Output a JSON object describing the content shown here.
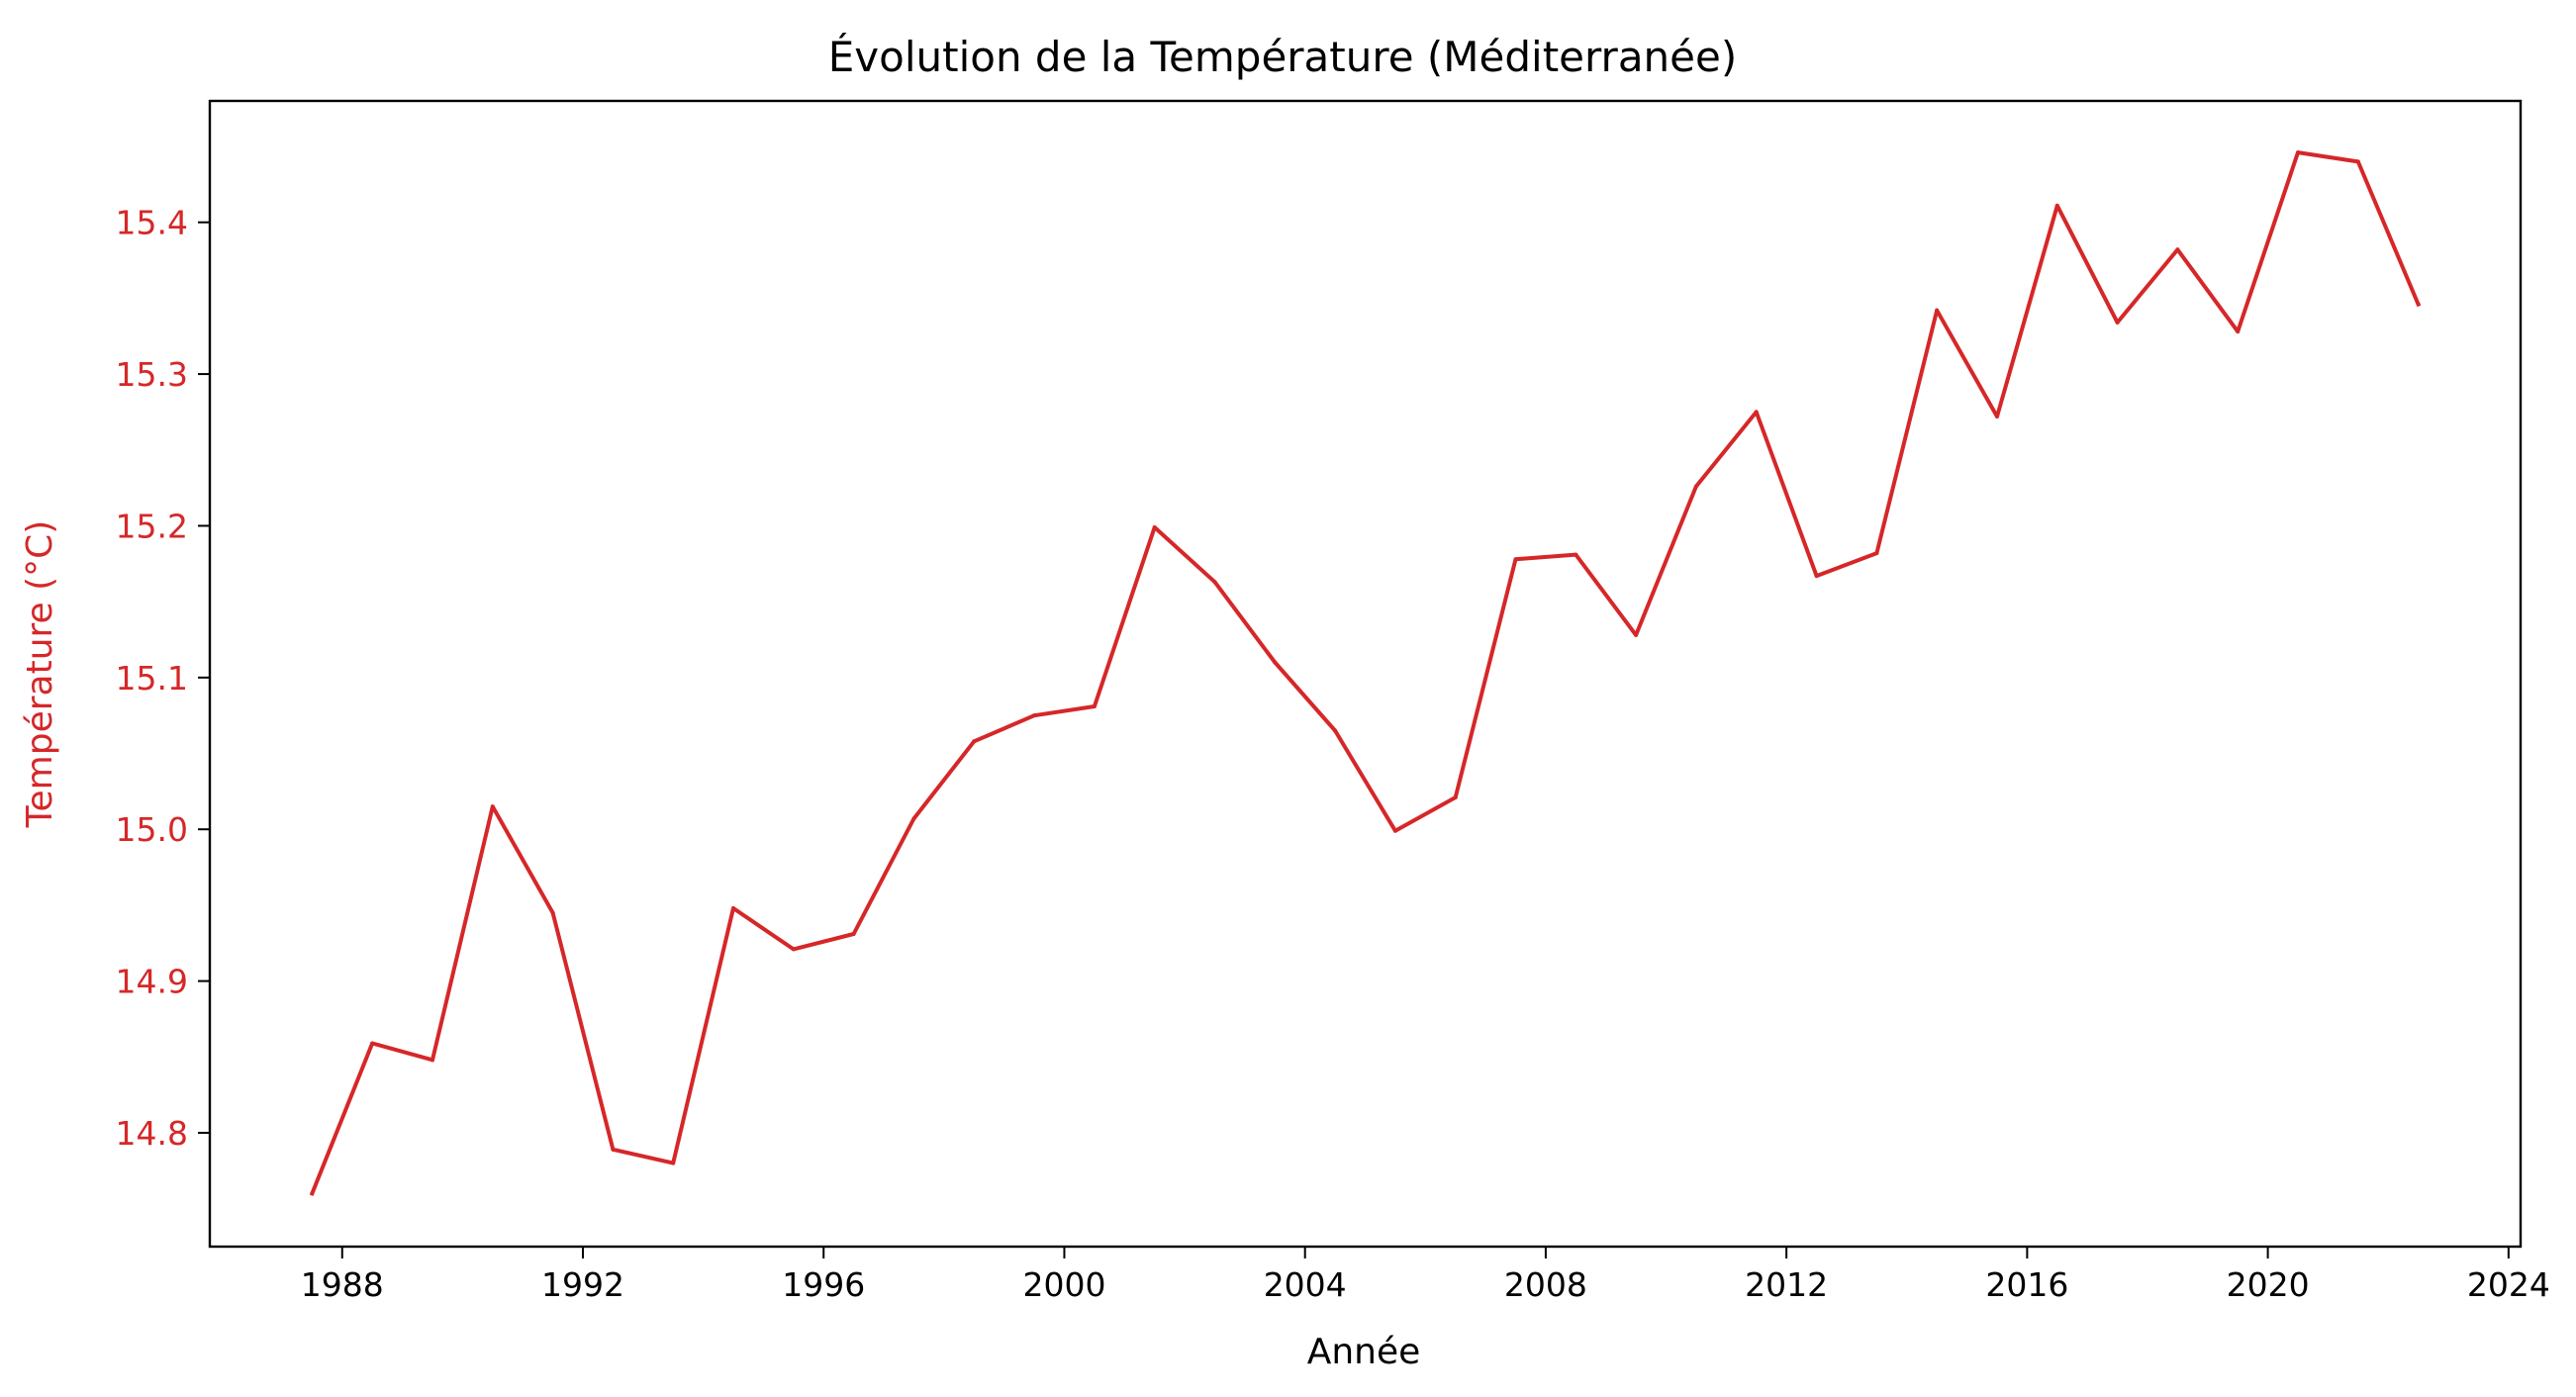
{
  "colors": {
    "series": "#d62728",
    "axis": "#000000",
    "ylabel": "#d62728"
  },
  "chart_data": {
    "type": "line",
    "title": "Évolution de la Température (Méditerranée)",
    "xlabel": "Année",
    "ylabel": "Température (°C)",
    "xlim": [
      1985.8,
      2024.2
    ],
    "ylim": [
      14.725,
      15.48
    ],
    "xticks": [
      1988,
      1992,
      1996,
      2000,
      2004,
      2008,
      2012,
      2016,
      2020,
      2024
    ],
    "xtick_labels": [
      "1988",
      "1992",
      "1996",
      "2000",
      "2004",
      "2008",
      "2012",
      "2016",
      "2020",
      "2024"
    ],
    "yticks": [
      14.8,
      14.9,
      15.0,
      15.1,
      15.2,
      15.3,
      15.4
    ],
    "ytick_labels": [
      "14.8",
      "14.9",
      "15.0",
      "15.1",
      "15.2",
      "15.3",
      "15.4"
    ],
    "grid": false,
    "series": [
      {
        "x": [
          1987.5,
          1988.5,
          1989.5,
          1990.5,
          1991.5,
          1992.5,
          1993.5,
          1994.5,
          1995.5,
          1996.5,
          1997.5,
          1998.5,
          1999.5,
          2000.5,
          2001.5,
          2002.5,
          2003.5,
          2004.5,
          2005.5,
          2006.5,
          2007.5,
          2008.5,
          2009.5,
          2010.5,
          2011.5,
          2012.5,
          2013.5,
          2014.5,
          2015.5,
          2016.5,
          2017.5,
          2018.5,
          2019.5,
          2020.5,
          2021.5,
          2022.5
        ],
        "values": [
          14.76,
          14.859,
          14.848,
          15.015,
          14.945,
          14.789,
          14.78,
          14.948,
          14.921,
          14.931,
          15.007,
          15.058,
          15.075,
          15.081,
          15.199,
          15.163,
          15.11,
          15.065,
          14.999,
          15.021,
          15.178,
          15.181,
          15.128,
          15.226,
          15.275,
          15.167,
          15.182,
          15.342,
          15.272,
          15.411,
          15.334,
          15.382,
          15.328,
          15.446,
          15.44,
          15.346
        ]
      }
    ]
  }
}
